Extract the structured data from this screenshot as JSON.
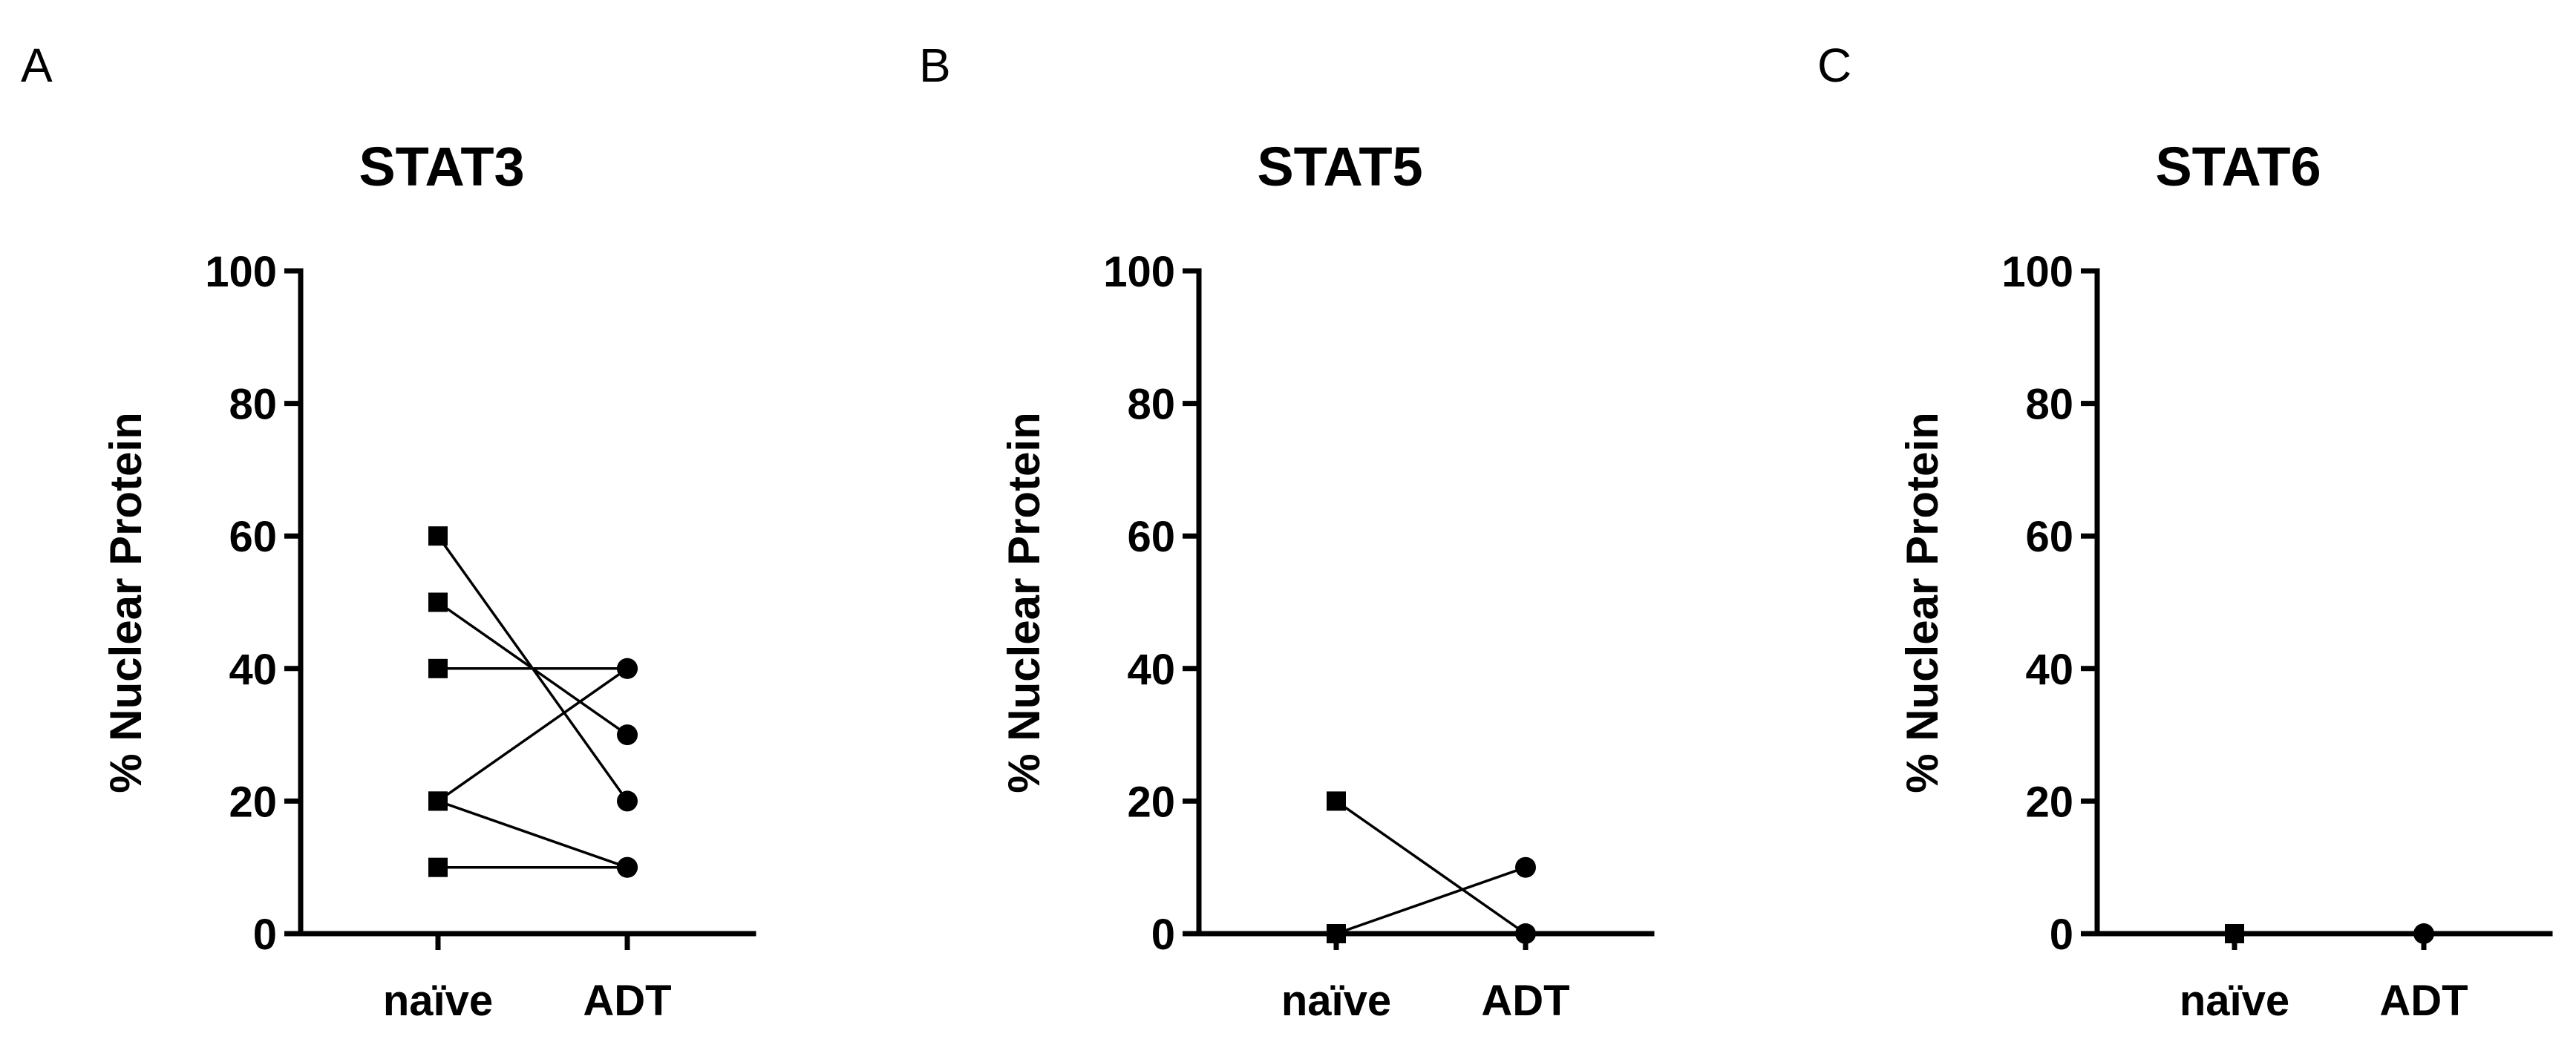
{
  "chart_data": [
    {
      "type": "line",
      "panel_letter": "A",
      "title": "STAT3",
      "ylabel": "% Nuclear Protein",
      "xlabel": "",
      "ylim": [
        0,
        100
      ],
      "yticks": [
        0,
        20,
        40,
        60,
        80,
        100
      ],
      "ytick_labels": [
        "0",
        "20",
        "40",
        "60",
        "80",
        "100"
      ],
      "categories": [
        "naïve",
        "ADT"
      ],
      "markers": [
        "square",
        "circle"
      ],
      "pairs": [
        [
          60,
          20
        ],
        [
          50,
          30
        ],
        [
          40,
          40
        ],
        [
          20,
          10
        ],
        [
          10,
          10
        ],
        [
          20,
          40
        ]
      ]
    },
    {
      "type": "line",
      "panel_letter": "B",
      "title": "STAT5",
      "ylabel": "% Nuclear Protein",
      "xlabel": "",
      "ylim": [
        0,
        100
      ],
      "yticks": [
        0,
        20,
        40,
        60,
        80,
        100
      ],
      "ytick_labels": [
        "0",
        "20",
        "40",
        "60",
        "80",
        "100"
      ],
      "categories": [
        "naïve",
        "ADT"
      ],
      "markers": [
        "square",
        "circle"
      ],
      "pairs": [
        [
          20,
          0
        ],
        [
          0,
          10
        ]
      ]
    },
    {
      "type": "line",
      "panel_letter": "C",
      "title": "STAT6",
      "ylabel": "% Nuclear Protein",
      "xlabel": "",
      "ylim": [
        0,
        100
      ],
      "yticks": [
        0,
        20,
        40,
        60,
        80,
        100
      ],
      "ytick_labels": [
        "0",
        "20",
        "40",
        "60",
        "80",
        "100"
      ],
      "categories": [
        "naïve",
        "ADT"
      ],
      "markers": [
        "square",
        "circle"
      ],
      "pairs": [
        [
          0,
          0
        ]
      ]
    }
  ]
}
